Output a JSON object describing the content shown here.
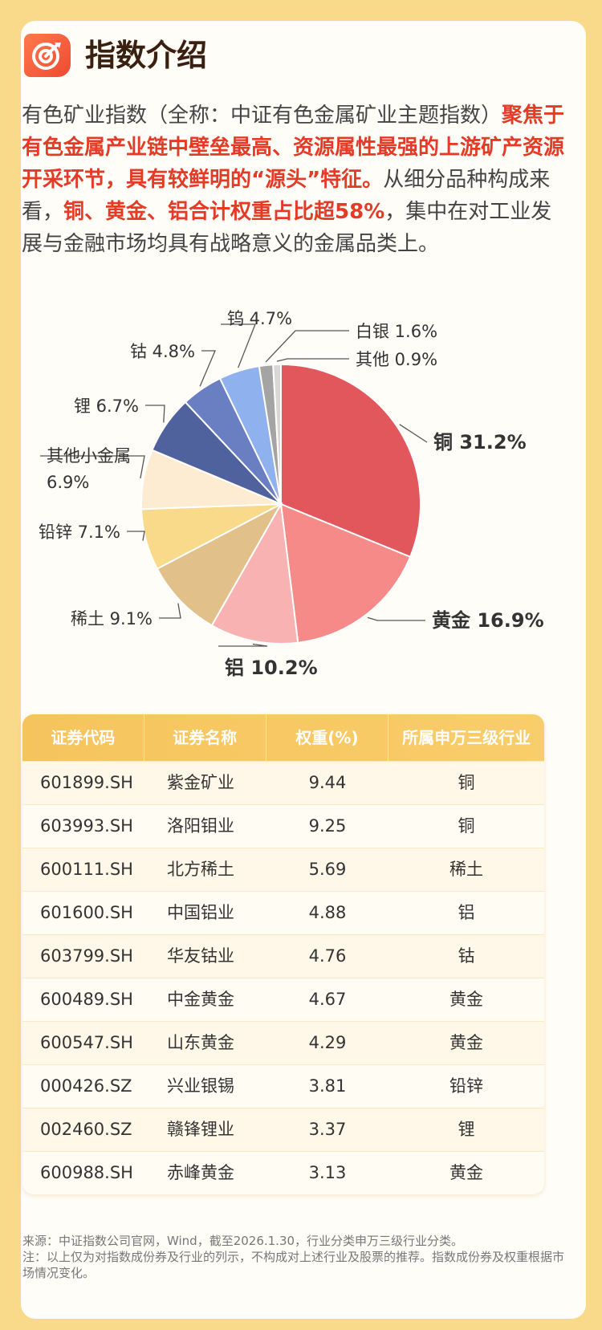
{
  "header": {
    "title": "指数介绍",
    "icon": "target-icon"
  },
  "intro": {
    "line1": "有色矿业指数（全称：中证有色金属矿业主题指数）",
    "highlight1": "聚焦于有色金属产业链中壁垒最高、资源属性最强的上游矿产资源开采环节，具有较鲜明的“源头”特征。",
    "text2": "从细分品种构成来看，",
    "highlight2": "铜、黄金、铝合计权重占比超58%",
    "text3": "，集中在对工业发展与金融市场均具有战略意义的金属品类上。"
  },
  "chart_data": {
    "type": "pie",
    "slices": [
      {
        "name": "铜",
        "value": 31.2,
        "label": "铜 31.2%",
        "color": "#e2575c"
      },
      {
        "name": "黄金",
        "value": 16.9,
        "label": "黄金 16.9%",
        "color": "#f58a88"
      },
      {
        "name": "铝",
        "value": 10.2,
        "label": "铝 10.2%",
        "color": "#f9b2b2"
      },
      {
        "name": "稀土",
        "value": 9.1,
        "label": "稀土 9.1%",
        "color": "#e2c08a"
      },
      {
        "name": "铅锌",
        "value": 7.1,
        "label": "铅锌 7.1%",
        "color": "#f9d98a"
      },
      {
        "name": "其他小金属",
        "value": 6.9,
        "label": "其他小金属 6.9%",
        "color": "#fdebd2"
      },
      {
        "name": "锂",
        "value": 6.7,
        "label": "锂 6.7%",
        "color": "#50629e"
      },
      {
        "name": "钴",
        "value": 4.8,
        "label": "钴 4.8%",
        "color": "#6a7fc2"
      },
      {
        "name": "钨",
        "value": 4.7,
        "label": "钨 4.7%",
        "color": "#8fb2ee"
      },
      {
        "name": "白银",
        "value": 1.6,
        "label": "白银 1.6%",
        "color": "#a4a4a4"
      },
      {
        "name": "其他",
        "value": 0.9,
        "label": "其他 0.9%",
        "color": "#d7d7d7"
      }
    ]
  },
  "table": {
    "headers": [
      "证券代码",
      "证券名称",
      "权重(%)",
      "所属申万三级行业"
    ],
    "rows": [
      [
        "601899.SH",
        "紫金矿业",
        "9.44",
        "铜"
      ],
      [
        "603993.SH",
        "洛阳钼业",
        "9.25",
        "铜"
      ],
      [
        "600111.SH",
        "北方稀土",
        "5.69",
        "稀土"
      ],
      [
        "601600.SH",
        "中国铝业",
        "4.88",
        "铝"
      ],
      [
        "603799.SH",
        "华友钴业",
        "4.76",
        "钴"
      ],
      [
        "600489.SH",
        "中金黄金",
        "4.67",
        "黄金"
      ],
      [
        "600547.SH",
        "山东黄金",
        "4.29",
        "黄金"
      ],
      [
        "000426.SZ",
        "兴业银锡",
        "3.81",
        "铅锌"
      ],
      [
        "002460.SZ",
        "赣锋锂业",
        "3.37",
        "锂"
      ],
      [
        "600988.SH",
        "赤峰黄金",
        "3.13",
        "黄金"
      ]
    ]
  },
  "footnote": {
    "source": "来源：中证指数公司官网，Wind，截至2026.1.30，行业分类申万三级行业分类。",
    "note": "注：以上仅为对指数成份券及行业的列示，不构成对上述行业及股票的推荐。指数成份券及权重根据市场情况变化。"
  }
}
